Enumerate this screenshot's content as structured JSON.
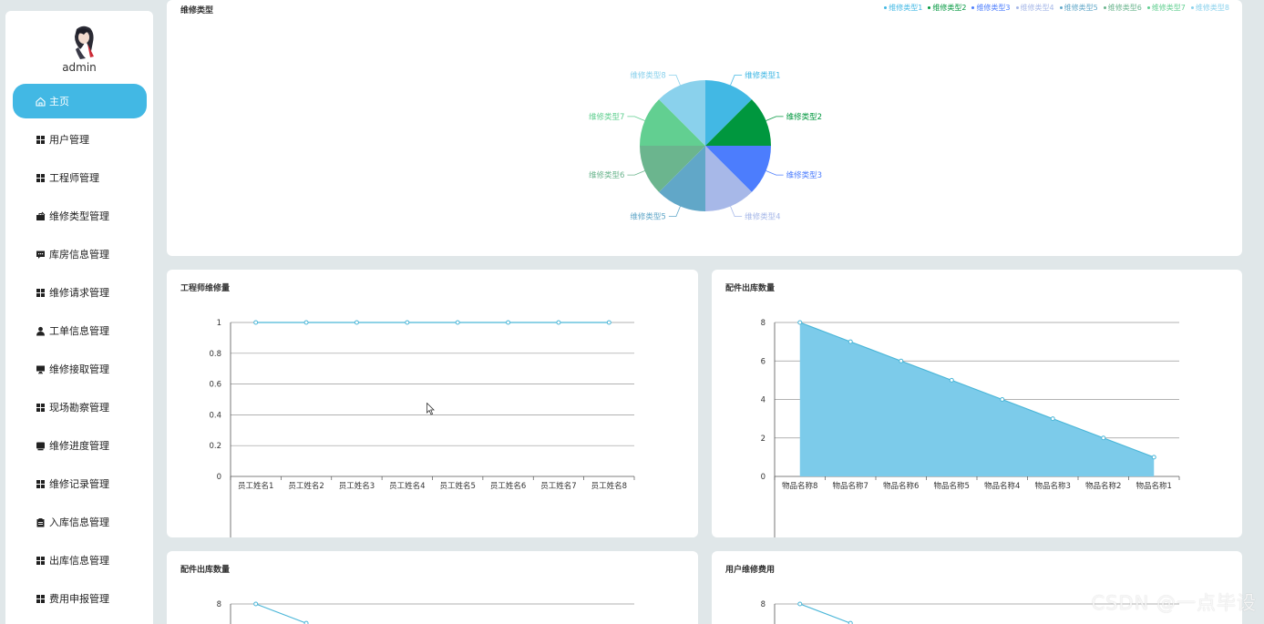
{
  "sidebar": {
    "username": "admin",
    "items": [
      {
        "label": "主页",
        "icon": "home-icon",
        "active": true
      },
      {
        "label": "用户管理",
        "icon": "grid-icon"
      },
      {
        "label": "工程师管理",
        "icon": "grid-icon"
      },
      {
        "label": "维修类型管理",
        "icon": "briefcase-icon"
      },
      {
        "label": "库房信息管理",
        "icon": "message-icon"
      },
      {
        "label": "维修请求管理",
        "icon": "grid-icon"
      },
      {
        "label": "工单信息管理",
        "icon": "user-icon"
      },
      {
        "label": "维修接取管理",
        "icon": "monitor-icon"
      },
      {
        "label": "现场勘察管理",
        "icon": "grid-icon"
      },
      {
        "label": "维修进度管理",
        "icon": "drive-icon"
      },
      {
        "label": "维修记录管理",
        "icon": "grid-icon"
      },
      {
        "label": "入库信息管理",
        "icon": "clipboard-icon"
      },
      {
        "label": "出库信息管理",
        "icon": "grid-icon"
      },
      {
        "label": "费用申报管理",
        "icon": "grid-icon"
      }
    ]
  },
  "colors": {
    "accent": "#42b8e4",
    "line": "#4ab6d8",
    "area": "#7ccbea"
  },
  "watermark": "CSDN @一点毕设",
  "chart_data": [
    {
      "type": "pie",
      "title": "维修类型",
      "categories": [
        "维修类型1",
        "维修类型2",
        "维修类型3",
        "维修类型4",
        "维修类型5",
        "维修类型6",
        "维修类型7",
        "维修类型8"
      ],
      "values": [
        1,
        1,
        1,
        1,
        1,
        1,
        1,
        1
      ],
      "colors": [
        "#42b8e4",
        "#00973e",
        "#4c7dfd",
        "#a7b8e8",
        "#61a7c8",
        "#6bb58e",
        "#62cf91",
        "#8ad1ec"
      ],
      "legend": "top-right"
    },
    {
      "type": "line",
      "title": "工程师维修量",
      "categories": [
        "员工姓名1",
        "员工姓名2",
        "员工姓名3",
        "员工姓名4",
        "员工姓名5",
        "员工姓名6",
        "员工姓名7",
        "员工姓名8"
      ],
      "values": [
        1,
        1,
        1,
        1,
        1,
        1,
        1,
        1
      ],
      "ylim": [
        0,
        1
      ],
      "yticks": [
        "0",
        "0.2",
        "0.4",
        "0.6",
        "0.8",
        "1"
      ],
      "grid": true
    },
    {
      "type": "area",
      "title": "配件出库数量",
      "categories": [
        "物品名称8",
        "物品名称7",
        "物品名称6",
        "物品名称5",
        "物品名称4",
        "物品名称3",
        "物品名称2",
        "物品名称1"
      ],
      "values": [
        8,
        7,
        6,
        5,
        4,
        3,
        2,
        1
      ],
      "ylim": [
        0,
        8
      ],
      "yticks": [
        "0",
        "2",
        "4",
        "6",
        "8"
      ],
      "grid": true
    },
    {
      "type": "line",
      "title": "配件出库数量",
      "values": [
        8,
        7
      ],
      "ylim": [
        0,
        8
      ],
      "yticks": [
        "8"
      ]
    },
    {
      "type": "line",
      "title": "用户维修费用",
      "values": [
        8,
        7
      ],
      "ylim": [
        0,
        8
      ],
      "yticks": [
        "8"
      ]
    }
  ]
}
